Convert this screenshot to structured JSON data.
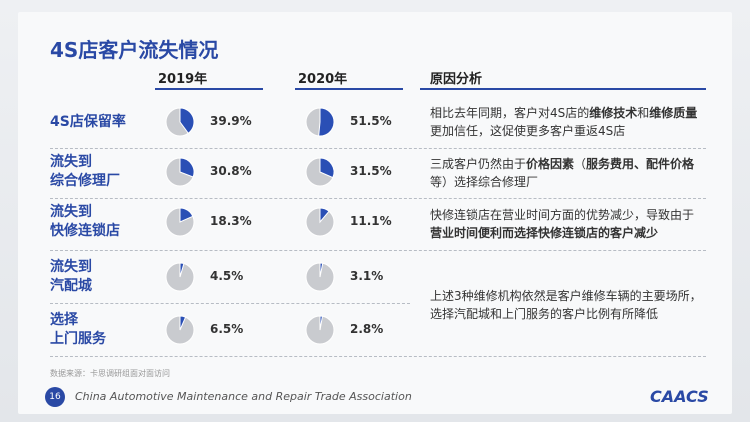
{
  "title": "4S店客户流失情况",
  "table": {
    "headers": [
      "2019年",
      "2020年",
      "原因分析"
    ],
    "rows": [
      {
        "label": [
          "4S店保留率"
        ],
        "values": [
          39.9,
          51.5
        ],
        "value_labels": [
          "39.9%",
          "51.5%"
        ]
      },
      {
        "label": [
          "流失到",
          "综合修理厂"
        ],
        "values": [
          30.8,
          31.5
        ],
        "value_labels": [
          "30.8%",
          "31.5%"
        ]
      },
      {
        "label": [
          "流失到",
          "快修连锁店"
        ],
        "values": [
          18.3,
          11.1
        ],
        "value_labels": [
          "18.3%",
          "11.1%"
        ]
      },
      {
        "label": [
          "流失到",
          "汽配城"
        ],
        "values": [
          4.5,
          3.1
        ],
        "value_labels": [
          "4.5%",
          "3.1%"
        ]
      },
      {
        "label": [
          "选择",
          "上门服务"
        ],
        "values": [
          6.5,
          2.8
        ],
        "value_labels": [
          "6.5%",
          "2.8%"
        ]
      }
    ],
    "reasons": [
      {
        "segments": [
          {
            "text": "相比去年同期，客户对4S店的",
            "bold": false
          },
          {
            "text": "维修技术",
            "bold": true
          },
          {
            "text": "和",
            "bold": false
          },
          {
            "text": "维修质量",
            "bold": true
          },
          {
            "text": "更加信任，这促使更多客户重返4S店",
            "bold": false
          }
        ]
      },
      {
        "segments": [
          {
            "text": "三成客户仍然由于",
            "bold": false
          },
          {
            "text": "价格因素",
            "bold": true
          },
          {
            "text": "（",
            "bold": false
          },
          {
            "text": "服务费用、配件价格",
            "bold": true
          },
          {
            "text": "等）选择综合修理厂",
            "bold": false
          }
        ]
      },
      {
        "segments": [
          {
            "text": "快修连锁店在营业时间方面的优势减少，导致由于",
            "bold": false
          },
          {
            "text": "营业时间便利而选择快修连锁店的客户减少",
            "bold": true
          }
        ]
      },
      {
        "segments": [
          {
            "text": "上述3种维修机构依然是客户维修车辆的主要场所，选择汽配城和上门服务的客户比例有所降低",
            "bold": false
          }
        ]
      }
    ]
  },
  "footer": {
    "source": "数据来源：卡思调研组面对面访问",
    "page": "16",
    "organization": "China Automotive Maintenance and Repair Trade Association",
    "logo": "CAACS"
  }
}
